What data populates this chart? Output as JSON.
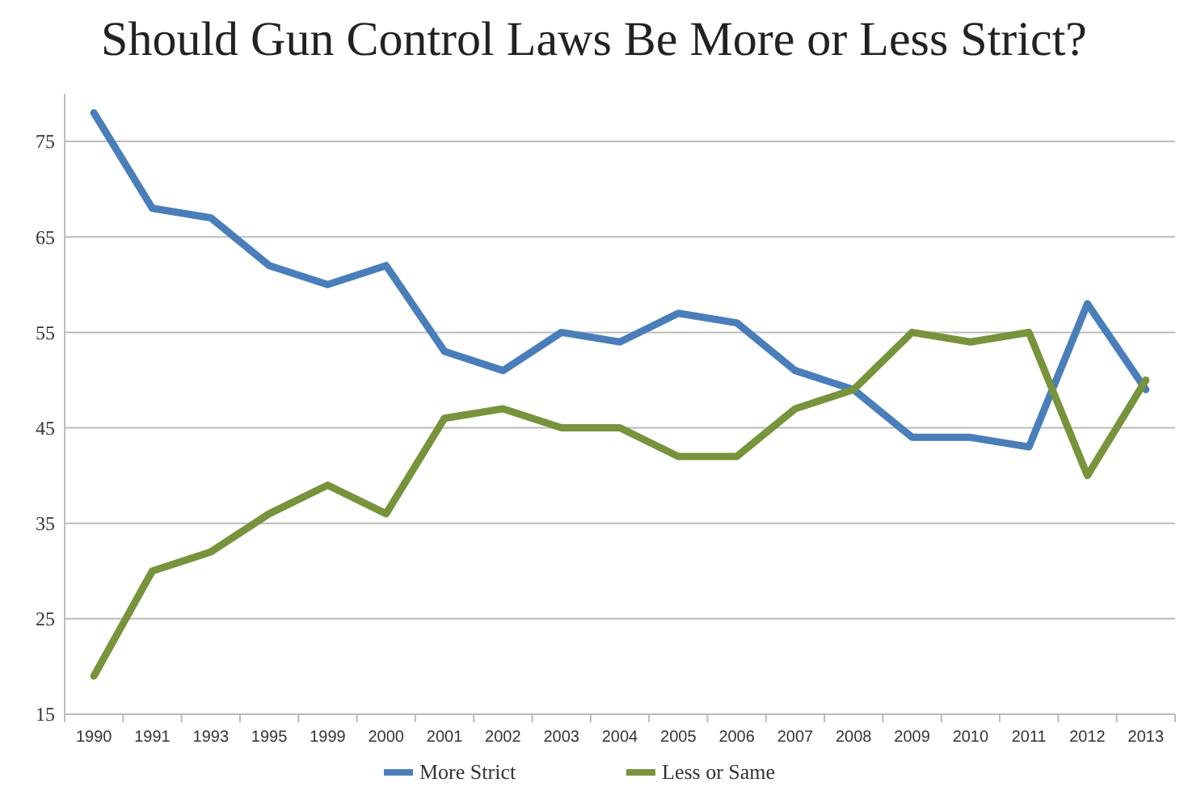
{
  "chart_data": {
    "type": "line",
    "title": "Should Gun Control Laws Be More or Less Strict?",
    "categories": [
      "1990",
      "1991",
      "1993",
      "1995",
      "1999",
      "2000",
      "2001",
      "2002",
      "2003",
      "2004",
      "2005",
      "2006",
      "2007",
      "2008",
      "2009",
      "2010",
      "2011",
      "2012",
      "2013"
    ],
    "series": [
      {
        "name": "More Strict",
        "color": "#4a7ebb",
        "values": [
          78,
          68,
          67,
          62,
          60,
          62,
          53,
          51,
          55,
          54,
          57,
          56,
          51,
          49,
          44,
          44,
          43,
          58,
          49
        ]
      },
      {
        "name": "Less or Same",
        "color": "#77933c",
        "values": [
          19,
          30,
          32,
          36,
          39,
          36,
          46,
          47,
          45,
          45,
          42,
          42,
          47,
          49,
          55,
          54,
          55,
          40,
          50
        ]
      }
    ],
    "ylim": [
      15,
      80
    ],
    "yticks": [
      15,
      25,
      35,
      45,
      55,
      65,
      75
    ],
    "grid": "y",
    "legend": "bottom",
    "marker": "none",
    "line_style": "solid"
  }
}
